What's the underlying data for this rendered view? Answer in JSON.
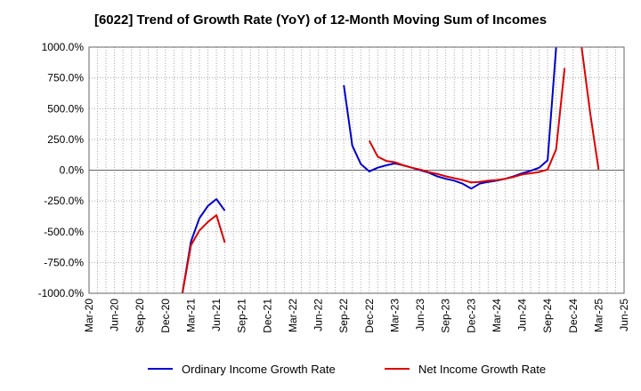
{
  "chart_data": {
    "type": "line",
    "title": "[6022]  Trend of Growth Rate (YoY) of 12-Month Moving Sum of Incomes",
    "xlabel": "",
    "ylabel": "",
    "ylim": [
      -1000,
      1000
    ],
    "y_ticks": [
      1000,
      750,
      500,
      250,
      0,
      -250,
      -500,
      -750,
      -1000
    ],
    "y_tick_labels": [
      "1000.0%",
      "750.0%",
      "500.0%",
      "250.0%",
      "0.0%",
      "-250.0%",
      "-500.0%",
      "-750.0%",
      "-1000.0%"
    ],
    "x_tick_labels": [
      "Mar-20",
      "Jun-20",
      "Sep-20",
      "Dec-20",
      "Mar-21",
      "Jun-21",
      "Sep-21",
      "Dec-21",
      "Mar-22",
      "Jun-22",
      "Sep-22",
      "Dec-22",
      "Mar-23",
      "Jun-23",
      "Sep-23",
      "Dec-23",
      "Mar-24",
      "Jun-24",
      "Sep-24",
      "Dec-24",
      "Mar-25",
      "Jun-25"
    ],
    "grid": true,
    "legend_position": "bottom",
    "series": [
      {
        "name": "Ordinary Income Growth Rate",
        "color": "#0000cc",
        "points": [
          [
            "Feb-21",
            -1000
          ],
          [
            "Mar-21",
            -580
          ],
          [
            "Apr-21",
            -390
          ],
          [
            "May-21",
            -290
          ],
          [
            "Jun-21",
            -235
          ],
          [
            "Jul-21",
            -330
          ],
          null,
          [
            "Sep-22",
            690
          ],
          [
            "Oct-22",
            200
          ],
          [
            "Nov-22",
            50
          ],
          [
            "Dec-22",
            -10
          ],
          [
            "Jan-23",
            20
          ],
          [
            "Feb-23",
            40
          ],
          [
            "Mar-23",
            55
          ],
          [
            "Apr-23",
            40
          ],
          [
            "May-23",
            20
          ],
          [
            "Jun-23",
            0
          ],
          [
            "Jul-23",
            -20
          ],
          [
            "Aug-23",
            -50
          ],
          [
            "Sep-23",
            -70
          ],
          [
            "Oct-23",
            -85
          ],
          [
            "Nov-23",
            -110
          ],
          [
            "Dec-23",
            -150
          ],
          [
            "Jan-24",
            -110
          ],
          [
            "Feb-24",
            -95
          ],
          [
            "Mar-24",
            -85
          ],
          [
            "Apr-24",
            -70
          ],
          [
            "May-24",
            -50
          ],
          [
            "Jun-24",
            -25
          ],
          [
            "Jul-24",
            -5
          ],
          [
            "Aug-24",
            20
          ],
          [
            "Sep-24",
            80
          ],
          [
            "Oct-24",
            1000
          ]
        ]
      },
      {
        "name": "Net Income Growth Rate",
        "color": "#dd0000",
        "points": [
          [
            "Feb-21",
            -1000
          ],
          [
            "Mar-21",
            -610
          ],
          [
            "Apr-21",
            -490
          ],
          [
            "May-21",
            -420
          ],
          [
            "Jun-21",
            -365
          ],
          [
            "Jul-21",
            -590
          ],
          null,
          [
            "Dec-22",
            240
          ],
          [
            "Jan-23",
            110
          ],
          [
            "Feb-23",
            75
          ],
          [
            "Mar-23",
            65
          ],
          [
            "Apr-23",
            40
          ],
          [
            "May-23",
            20
          ],
          [
            "Jun-23",
            5
          ],
          [
            "Jul-23",
            -15
          ],
          [
            "Aug-23",
            -30
          ],
          [
            "Sep-23",
            -50
          ],
          [
            "Oct-23",
            -65
          ],
          [
            "Nov-23",
            -80
          ],
          [
            "Dec-23",
            -100
          ],
          [
            "Jan-24",
            -95
          ],
          [
            "Feb-24",
            -85
          ],
          [
            "Mar-24",
            -80
          ],
          [
            "Apr-24",
            -70
          ],
          [
            "May-24",
            -55
          ],
          [
            "Jun-24",
            -35
          ],
          [
            "Jul-24",
            -25
          ],
          [
            "Aug-24",
            -15
          ],
          [
            "Sep-24",
            5
          ],
          [
            "Oct-24",
            170
          ],
          [
            "Nov-24",
            830
          ],
          null,
          [
            "Jan-25",
            1000
          ],
          [
            "Feb-25",
            470
          ],
          [
            "Mar-25",
            5
          ]
        ]
      }
    ]
  }
}
